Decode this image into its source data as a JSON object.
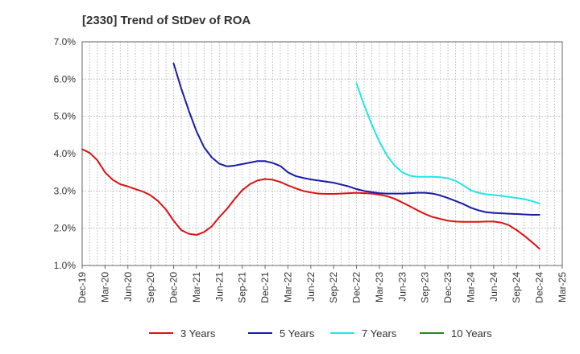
{
  "chart_data": {
    "type": "line",
    "title": "[2330]  Trend of StDev of ROA",
    "xlabel": "",
    "ylabel": "",
    "x_ticks": [
      "Dec-19",
      "Mar-20",
      "Jun-20",
      "Sep-20",
      "Dec-20",
      "Mar-21",
      "Jun-21",
      "Sep-21",
      "Dec-21",
      "Mar-22",
      "Jun-22",
      "Sep-22",
      "Dec-22",
      "Mar-23",
      "Jun-23",
      "Sep-23",
      "Dec-23",
      "Mar-24",
      "Jun-24",
      "Sep-24",
      "Dec-24",
      "Mar-25"
    ],
    "y_ticks": [
      "1.0%",
      "2.0%",
      "3.0%",
      "4.0%",
      "5.0%",
      "6.0%",
      "7.0%"
    ],
    "ylim": [
      1.0,
      7.0
    ],
    "grid": true,
    "legend_position": "bottom",
    "series": [
      {
        "name": "3 Years",
        "color": "#dd1111",
        "x": [
          "Dec-19",
          "Jan-20",
          "Feb-20",
          "Mar-20",
          "Apr-20",
          "May-20",
          "Jun-20",
          "Jul-20",
          "Aug-20",
          "Sep-20",
          "Oct-20",
          "Nov-20",
          "Dec-20",
          "Jan-21",
          "Feb-21",
          "Mar-21",
          "Apr-21",
          "May-21",
          "Jun-21",
          "Jul-21",
          "Aug-21",
          "Sep-21",
          "Oct-21",
          "Nov-21",
          "Dec-21",
          "Jan-22",
          "Feb-22",
          "Mar-22",
          "Apr-22",
          "May-22",
          "Jun-22",
          "Jul-22",
          "Aug-22",
          "Sep-22",
          "Oct-22",
          "Nov-22",
          "Dec-22",
          "Jan-23",
          "Feb-23",
          "Mar-23",
          "Apr-23",
          "May-23",
          "Jun-23",
          "Jul-23",
          "Aug-23",
          "Sep-23",
          "Oct-23",
          "Nov-23",
          "Dec-23",
          "Jan-24",
          "Feb-24",
          "Mar-24",
          "Apr-24",
          "May-24",
          "Jun-24",
          "Jul-24",
          "Aug-24",
          "Sep-24",
          "Oct-24",
          "Nov-24",
          "Dec-24"
        ],
        "values": [
          4.12,
          4.02,
          3.82,
          3.5,
          3.3,
          3.18,
          3.12,
          3.05,
          2.98,
          2.88,
          2.72,
          2.5,
          2.2,
          1.95,
          1.85,
          1.82,
          1.9,
          2.05,
          2.3,
          2.52,
          2.78,
          3.02,
          3.18,
          3.28,
          3.32,
          3.3,
          3.24,
          3.15,
          3.07,
          3.0,
          2.96,
          2.93,
          2.92,
          2.92,
          2.93,
          2.94,
          2.95,
          2.94,
          2.93,
          2.9,
          2.86,
          2.79,
          2.69,
          2.59,
          2.48,
          2.38,
          2.3,
          2.25,
          2.2,
          2.18,
          2.17,
          2.17,
          2.17,
          2.18,
          2.18,
          2.15,
          2.08,
          1.95,
          1.8,
          1.63,
          1.45
        ]
      },
      {
        "name": "5 Years",
        "color": "#1a1aaa",
        "x": [
          "Dec-20",
          "Jan-21",
          "Feb-21",
          "Mar-21",
          "Apr-21",
          "May-21",
          "Jun-21",
          "Jul-21",
          "Aug-21",
          "Sep-21",
          "Oct-21",
          "Nov-21",
          "Dec-21",
          "Jan-22",
          "Feb-22",
          "Mar-22",
          "Apr-22",
          "May-22",
          "Jun-22",
          "Jul-22",
          "Aug-22",
          "Sep-22",
          "Oct-22",
          "Nov-22",
          "Dec-22",
          "Jan-23",
          "Feb-23",
          "Mar-23",
          "Apr-23",
          "May-23",
          "Jun-23",
          "Jul-23",
          "Aug-23",
          "Sep-23",
          "Oct-23",
          "Nov-23",
          "Dec-23",
          "Jan-24",
          "Feb-24",
          "Mar-24",
          "Apr-24",
          "May-24",
          "Jun-24",
          "Jul-24",
          "Aug-24",
          "Sep-24",
          "Oct-24",
          "Nov-24",
          "Dec-24"
        ],
        "values": [
          6.42,
          5.75,
          5.15,
          4.6,
          4.17,
          3.9,
          3.73,
          3.66,
          3.68,
          3.72,
          3.76,
          3.8,
          3.8,
          3.75,
          3.67,
          3.5,
          3.4,
          3.35,
          3.31,
          3.28,
          3.25,
          3.22,
          3.17,
          3.12,
          3.05,
          3.0,
          2.97,
          2.94,
          2.93,
          2.93,
          2.93,
          2.94,
          2.95,
          2.95,
          2.93,
          2.88,
          2.81,
          2.73,
          2.65,
          2.55,
          2.48,
          2.43,
          2.41,
          2.4,
          2.39,
          2.38,
          2.37,
          2.36,
          2.36
        ]
      },
      {
        "name": "7 Years",
        "color": "#22e5e5",
        "x": [
          "Dec-22",
          "Jan-23",
          "Feb-23",
          "Mar-23",
          "Apr-23",
          "May-23",
          "Jun-23",
          "Jul-23",
          "Aug-23",
          "Sep-23",
          "Oct-23",
          "Nov-23",
          "Dec-23",
          "Jan-24",
          "Feb-24",
          "Mar-24",
          "Apr-24",
          "May-24",
          "Jun-24",
          "Jul-24",
          "Aug-24",
          "Sep-24",
          "Oct-24",
          "Nov-24",
          "Dec-24"
        ],
        "values": [
          5.88,
          5.3,
          4.78,
          4.32,
          3.95,
          3.68,
          3.5,
          3.41,
          3.38,
          3.38,
          3.38,
          3.37,
          3.34,
          3.27,
          3.15,
          3.02,
          2.95,
          2.91,
          2.89,
          2.87,
          2.84,
          2.81,
          2.78,
          2.73,
          2.66
        ]
      },
      {
        "name": "10 Years",
        "color": "#228822",
        "x": [],
        "values": []
      }
    ]
  }
}
